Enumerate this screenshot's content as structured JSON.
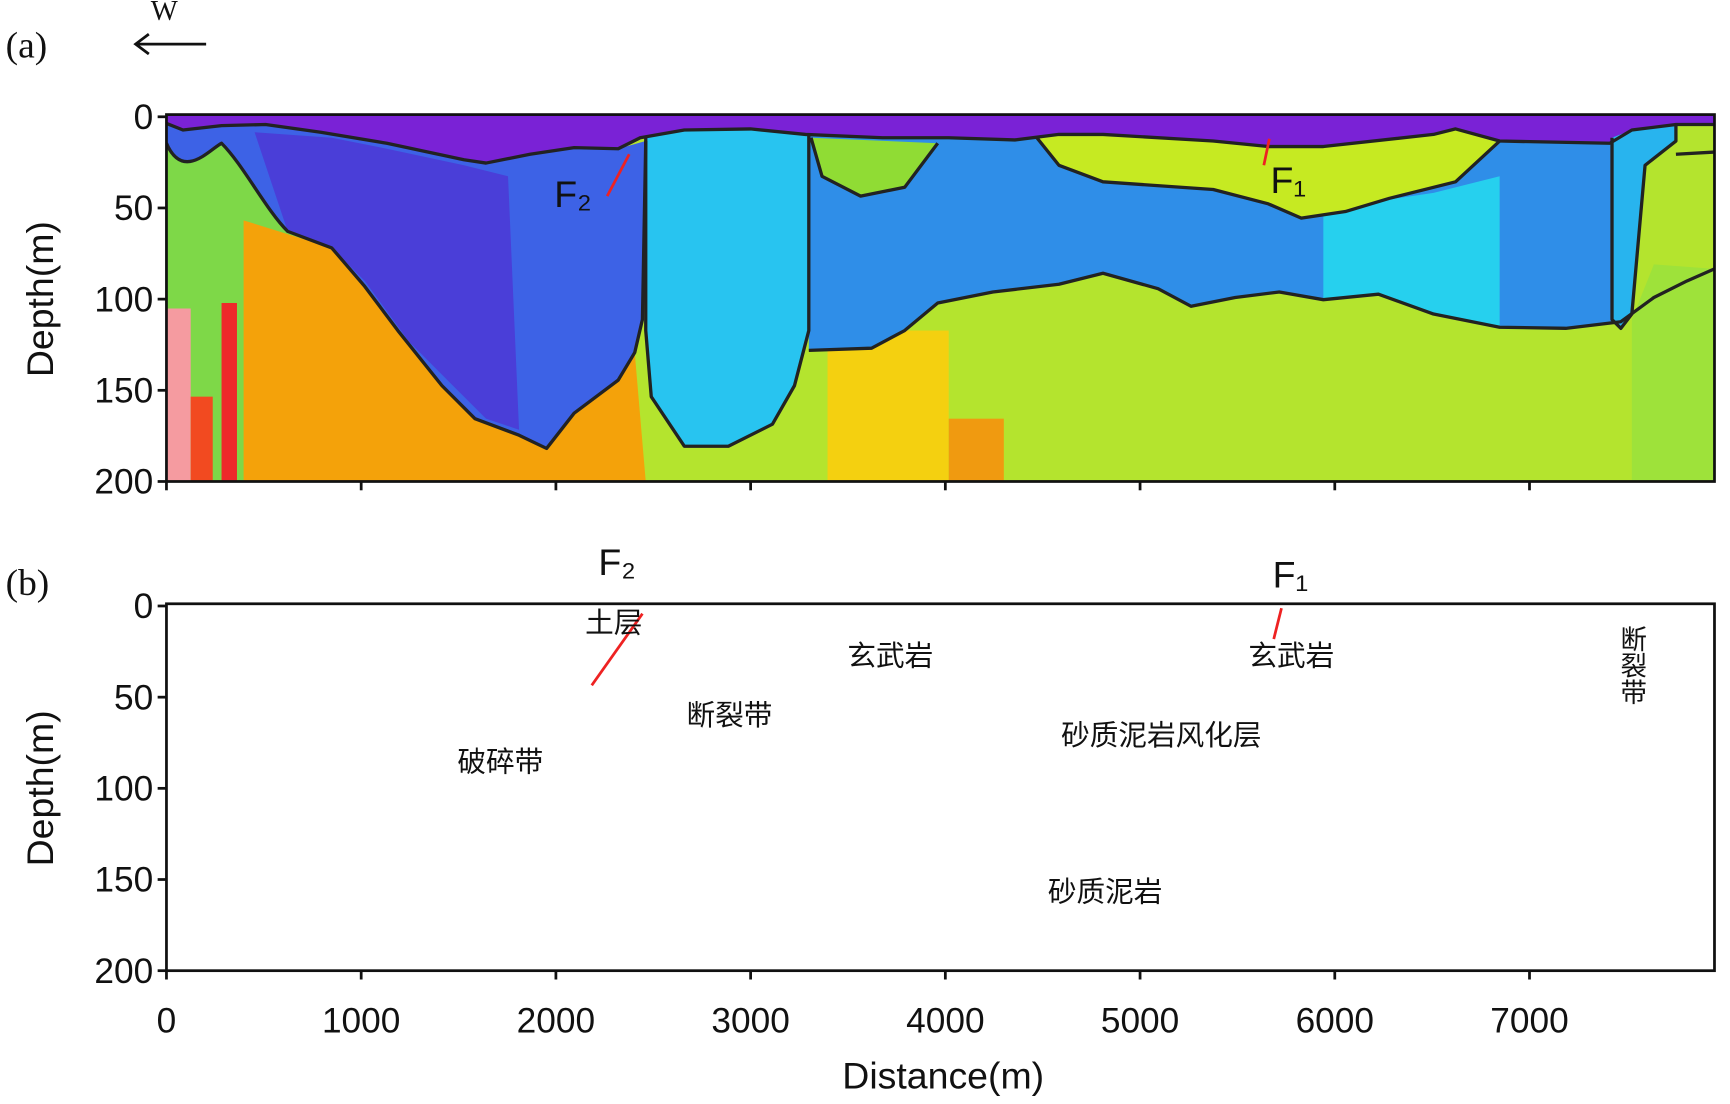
{
  "panel_a": {
    "label": "(a)",
    "direction": "W",
    "fault_f2": "F₂",
    "fault_f1": "F₁"
  },
  "panel_b": {
    "label": "(b)",
    "fault_f2": "F₂",
    "fault_f1": "F₁",
    "units": {
      "topsoil": "土层",
      "basalt_west": "玄武岩",
      "basalt_east": "玄武岩",
      "fault_zone_west": "断裂带",
      "fault_zone_east": "断裂带",
      "breccia": "破碎带",
      "weathered": "砂质泥岩风化层",
      "mudstone": "砂质泥岩"
    }
  },
  "axes": {
    "depth_title": "Depth(m)",
    "depth_lim": [
      0,
      200
    ],
    "depth_ticks": [
      0,
      50,
      100,
      150,
      200
    ],
    "distance_title": "Distance(m)",
    "distance_lim": [
      0,
      7950
    ],
    "distance_ticks": [
      0,
      1000,
      2000,
      3000,
      4000,
      5000,
      6000,
      7000
    ]
  }
}
